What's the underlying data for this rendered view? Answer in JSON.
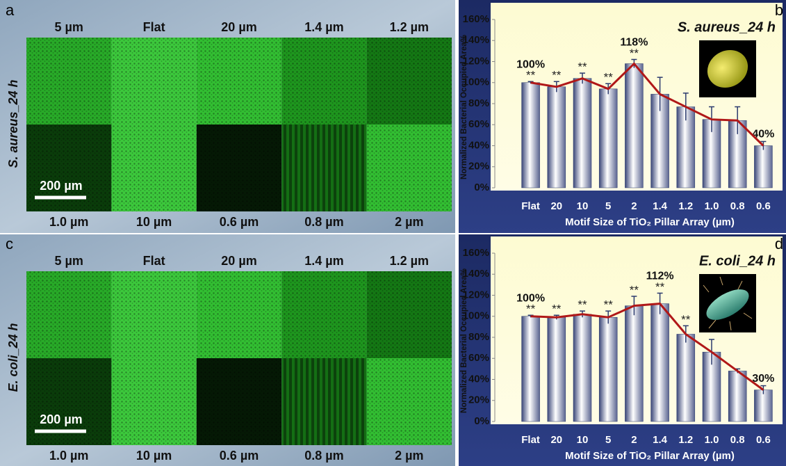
{
  "panels": [
    {
      "letter": "a",
      "side_label": "S. aureus_24 h",
      "scale_bar": "200 µm",
      "top_labels": [
        "5 µm",
        "Flat",
        "20 µm",
        "1.4 µm",
        "1.2 µm"
      ],
      "bottom_labels": [
        "1.0 µm",
        "10 µm",
        "0.6 µm",
        "0.8 µm",
        "2 µm"
      ]
    },
    {
      "letter": "c",
      "side_label": "E. coli_24 h",
      "scale_bar": "200 µm",
      "top_labels": [
        "5 µm",
        "Flat",
        "20 µm",
        "1.4 µm",
        "1.2 µm"
      ],
      "bottom_labels": [
        "1.0 µm",
        "10 µm",
        "0.6 µm",
        "0.8 µm",
        "2 µm"
      ]
    }
  ],
  "chart_data": [
    {
      "type": "bar",
      "panel": "b",
      "title": "S. aureus_24 h",
      "x_label": "Motif Size of TiO₂ Pillar Array (µm)",
      "y_label": "Normalized Bacterial Occupied Area%",
      "categories": [
        "Flat",
        "20",
        "10",
        "5",
        "2",
        "1.4",
        "1.2",
        "1.0",
        "0.8",
        "0.6"
      ],
      "values": [
        100,
        96,
        104,
        94,
        118,
        89,
        77,
        65,
        64,
        40
      ],
      "errors": [
        1,
        5,
        5,
        5,
        4,
        16,
        13,
        12,
        13,
        4
      ],
      "value_labels": [
        "100%",
        null,
        null,
        null,
        "118%",
        null,
        null,
        null,
        null,
        "40%"
      ],
      "significance": [
        "**",
        "**",
        "**",
        "**",
        "**",
        null,
        null,
        null,
        null,
        null
      ],
      "color": "#2b3a6e",
      "line_color": "#b01818",
      "ylim": [
        0,
        160
      ],
      "yticks": [
        {
          "value": 0,
          "label": "0%"
        },
        {
          "value": 20,
          "label": "20%"
        },
        {
          "value": 40,
          "label": "40%"
        },
        {
          "value": 60,
          "label": "60%"
        },
        {
          "value": 80,
          "label": "80%"
        },
        {
          "value": 100,
          "label": "100%"
        },
        {
          "value": 120,
          "label": "120%"
        },
        {
          "value": 140,
          "label": "140%"
        },
        {
          "value": 160,
          "label": "160%"
        }
      ]
    },
    {
      "type": "bar",
      "panel": "d",
      "title": "E. coli_24 h",
      "x_label": "Motif Size of TiO₂ Pillar Array (µm)",
      "y_label": "Normalized Bacterial Occupied Area%",
      "categories": [
        "Flat",
        "20",
        "10",
        "5",
        "2",
        "1.4",
        "1.2",
        "1.0",
        "0.8",
        "0.6"
      ],
      "values": [
        100,
        99,
        102,
        99,
        110,
        112,
        83,
        66,
        48,
        30
      ],
      "errors": [
        1,
        2,
        3,
        6,
        9,
        10,
        8,
        12,
        2,
        4
      ],
      "value_labels": [
        "100%",
        null,
        null,
        null,
        null,
        "112%",
        null,
        null,
        null,
        "30%"
      ],
      "significance": [
        "**",
        "**",
        "**",
        "**",
        "**",
        "**",
        "**",
        null,
        null,
        null
      ],
      "color": "#2b3a6e",
      "line_color": "#b01818",
      "ylim": [
        0,
        160
      ],
      "yticks": [
        {
          "value": 0,
          "label": "0%"
        },
        {
          "value": 20,
          "label": "20%"
        },
        {
          "value": 40,
          "label": "40%"
        },
        {
          "value": 60,
          "label": "60%"
        },
        {
          "value": 80,
          "label": "80%"
        },
        {
          "value": 100,
          "label": "100%"
        },
        {
          "value": 120,
          "label": "120%"
        },
        {
          "value": 140,
          "label": "140%"
        },
        {
          "value": 160,
          "label": "160%"
        }
      ]
    }
  ]
}
